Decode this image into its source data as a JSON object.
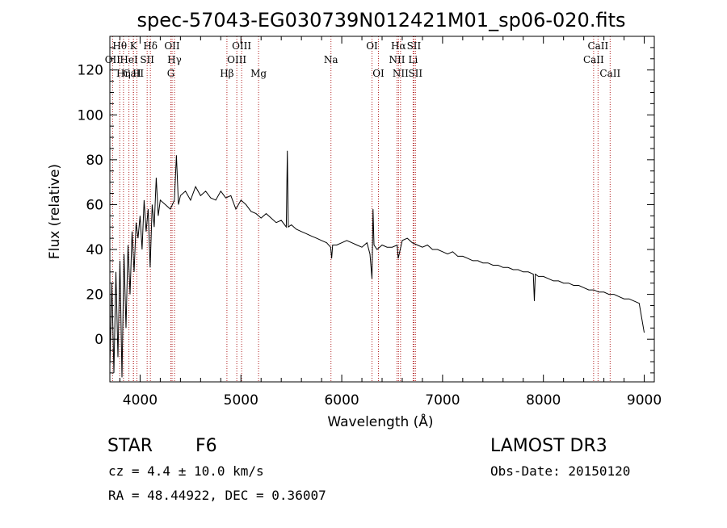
{
  "chart_data": {
    "type": "line",
    "title": "spec-57043-EG030739N012421M01_sp06-020.fits",
    "xlabel": "Wavelength (Å)",
    "ylabel": "Flux (relative)",
    "xlim": [
      3700,
      9100
    ],
    "ylim": [
      -19,
      135
    ],
    "xticks": [
      4000,
      5000,
      6000,
      7000,
      8000,
      9000
    ],
    "yticks": [
      0,
      20,
      40,
      60,
      80,
      100,
      120
    ],
    "xtick_labels": [
      "4000",
      "5000",
      "6000",
      "7000",
      "8000",
      "9000"
    ],
    "ytick_labels": [
      "0",
      "20",
      "40",
      "60",
      "80",
      "100",
      "120"
    ],
    "spectrum": {
      "name": "flux",
      "x": [
        3700,
        3720,
        3740,
        3760,
        3780,
        3800,
        3820,
        3840,
        3860,
        3880,
        3900,
        3920,
        3940,
        3960,
        3980,
        4000,
        4020,
        4040,
        4060,
        4080,
        4100,
        4120,
        4140,
        4160,
        4180,
        4200,
        4250,
        4300,
        4340,
        4360,
        4380,
        4400,
        4450,
        4500,
        4550,
        4600,
        4650,
        4700,
        4750,
        4800,
        4850,
        4900,
        4950,
        5000,
        5050,
        5100,
        5150,
        5200,
        5250,
        5300,
        5350,
        5400,
        5450,
        5460,
        5470,
        5500,
        5550,
        5600,
        5650,
        5700,
        5750,
        5800,
        5850,
        5890,
        5900,
        5910,
        5950,
        6000,
        6050,
        6100,
        6150,
        6200,
        6250,
        6280,
        6300,
        6310,
        6320,
        6350,
        6400,
        6450,
        6500,
        6550,
        6560,
        6570,
        6600,
        6650,
        6700,
        6750,
        6800,
        6850,
        6900,
        6950,
        7000,
        7050,
        7100,
        7150,
        7200,
        7250,
        7300,
        7350,
        7400,
        7450,
        7500,
        7550,
        7600,
        7650,
        7700,
        7750,
        7800,
        7850,
        7900,
        7910,
        7920,
        7950,
        8000,
        8050,
        8100,
        8150,
        8200,
        8250,
        8300,
        8350,
        8400,
        8450,
        8500,
        8550,
        8600,
        8650,
        8700,
        8750,
        8800,
        8850,
        8900,
        8950,
        9000
      ],
      "y": [
        -12,
        25,
        -15,
        30,
        -8,
        35,
        -17,
        38,
        5,
        42,
        20,
        48,
        30,
        52,
        45,
        55,
        40,
        62,
        48,
        58,
        32,
        60,
        50,
        72,
        55,
        62,
        60,
        58,
        62,
        82,
        60,
        64,
        66,
        62,
        68,
        64,
        66,
        63,
        62,
        66,
        63,
        64,
        58,
        62,
        60,
        57,
        56,
        54,
        56,
        54,
        52,
        53,
        50,
        84,
        50,
        51,
        49,
        48,
        47,
        46,
        45,
        44,
        43,
        41,
        36,
        42,
        42,
        43,
        44,
        43,
        42,
        41,
        43,
        38,
        27,
        58,
        42,
        40,
        42,
        41,
        41,
        42,
        36,
        38,
        44,
        45,
        43,
        42,
        41,
        42,
        40,
        40,
        39,
        38,
        39,
        37,
        37,
        36,
        35,
        35,
        34,
        34,
        33,
        33,
        32,
        32,
        31,
        31,
        30,
        30,
        29,
        17,
        29,
        28,
        28,
        27,
        26,
        26,
        25,
        25,
        24,
        24,
        23,
        22,
        22,
        21,
        21,
        20,
        20,
        19,
        18,
        18,
        17,
        16,
        3
      ]
    },
    "lines": [
      {
        "label": "Hθ",
        "wl": 3798,
        "row": 1
      },
      {
        "label": "OII",
        "wl": 3727,
        "row": 2
      },
      {
        "label": "CaII",
        "wl": 3934,
        "row": 3
      },
      {
        "label": "K",
        "wl": 3934,
        "row": 1
      },
      {
        "label": "Hη",
        "wl": 3835,
        "row": 3
      },
      {
        "label": "HeI",
        "wl": 3889,
        "row": 2
      },
      {
        "label": "H",
        "wl": 3968,
        "row": 3
      },
      {
        "label": "SII",
        "wl": 4070,
        "row": 2
      },
      {
        "label": "Hδ",
        "wl": 4102,
        "row": 1
      },
      {
        "label": "OII",
        "wl": 4317,
        "row": 1
      },
      {
        "label": "Hγ",
        "wl": 4341,
        "row": 2
      },
      {
        "label": "G",
        "wl": 4305,
        "row": 3
      },
      {
        "label": "Hβ",
        "wl": 4861,
        "row": 3
      },
      {
        "label": "OIII",
        "wl": 5007,
        "row": 1
      },
      {
        "label": "OIII",
        "wl": 4959,
        "row": 2
      },
      {
        "label": "Mg",
        "wl": 5175,
        "row": 3
      },
      {
        "label": "Na",
        "wl": 5893,
        "row": 2
      },
      {
        "label": "OI",
        "wl": 6300,
        "row": 1
      },
      {
        "label": "OI",
        "wl": 6364,
        "row": 3
      },
      {
        "label": "Hα",
        "wl": 6563,
        "row": 1
      },
      {
        "label": "SII",
        "wl": 6716,
        "row": 1
      },
      {
        "label": "NII",
        "wl": 6548,
        "row": 2
      },
      {
        "label": "Li",
        "wl": 6708,
        "row": 2
      },
      {
        "label": "NII",
        "wl": 6583,
        "row": 3
      },
      {
        "label": "SII",
        "wl": 6731,
        "row": 3
      },
      {
        "label": "CaII",
        "wl": 8542,
        "row": 1
      },
      {
        "label": "CaII",
        "wl": 8498,
        "row": 2
      },
      {
        "label": "CaII",
        "wl": 8662,
        "row": 3
      }
    ]
  },
  "info": {
    "object_class": "STAR",
    "subclass": "F6",
    "survey": "LAMOST DR3",
    "redshift": "cz = 4.4 ± 10.0 km/s",
    "obs_date": "Obs-Date: 20150120",
    "coords": "RA =  48.44922, DEC =   0.36007"
  },
  "colors": {
    "spectrum": "#000000",
    "line_marker": "#b22222",
    "axis": "#000000"
  }
}
